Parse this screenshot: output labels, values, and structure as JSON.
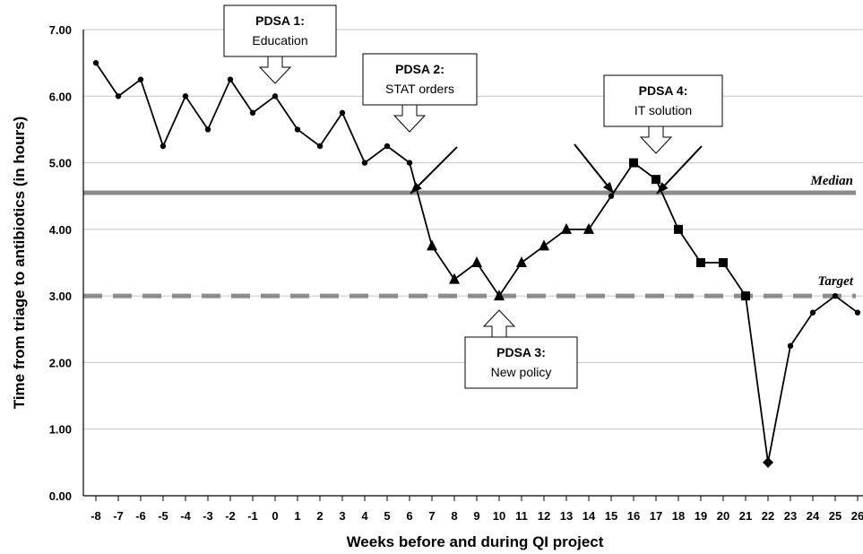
{
  "chart_data": {
    "type": "line",
    "xlabel": "Weeks before and during QI project",
    "ylabel": "Time from triage to antibiotics (in hours)",
    "ylim": [
      0,
      7
    ],
    "y_ticks": [
      "0.00",
      "1.00",
      "2.00",
      "3.00",
      "4.00",
      "5.00",
      "6.00",
      "7.00"
    ],
    "grid": "horizontal",
    "categories": [
      "-8",
      "-7",
      "-6",
      "-5",
      "-4",
      "-3",
      "-2",
      "-1",
      "0",
      "1",
      "2",
      "3",
      "4",
      "5",
      "6",
      "7",
      "8",
      "9",
      "10",
      "11",
      "12",
      "13",
      "14",
      "15",
      "16",
      "17",
      "18",
      "19",
      "20",
      "21",
      "22",
      "23",
      "24",
      "25",
      "26"
    ],
    "values": [
      6.5,
      6.0,
      6.25,
      5.25,
      6.0,
      5.5,
      6.25,
      5.75,
      6.0,
      5.5,
      5.25,
      5.75,
      5.0,
      5.25,
      5.0,
      3.75,
      3.25,
      3.5,
      3.0,
      3.5,
      3.75,
      4.0,
      4.0,
      4.5,
      5.0,
      4.75,
      4.0,
      3.5,
      3.5,
      3.0,
      0.5,
      2.25,
      2.75,
      3.0,
      2.75
    ],
    "markers": [
      "circle",
      "circle",
      "circle",
      "circle",
      "circle",
      "circle",
      "circle",
      "circle",
      "circle",
      "circle",
      "circle",
      "circle",
      "circle",
      "circle",
      "circle",
      "triangle",
      "triangle",
      "triangle",
      "triangle",
      "triangle",
      "triangle",
      "triangle",
      "triangle",
      "circle",
      "square",
      "square",
      "square",
      "square",
      "square",
      "square",
      "diamond",
      "circle",
      "circle",
      "circle",
      "circle"
    ],
    "reference_lines": [
      {
        "label": "Median",
        "value": 4.55,
        "style": "solid",
        "color": "#8c8c8c"
      },
      {
        "label": "Target",
        "value": 3.0,
        "style": "dashed",
        "color": "#8c8c8c"
      }
    ],
    "annotations": [
      {
        "title": "PDSA 1:",
        "text": "Education",
        "points_to_week": "0",
        "pointer": "down"
      },
      {
        "title": "PDSA 2:",
        "text": "STAT orders",
        "points_to_week": "6",
        "pointer": "down"
      },
      {
        "title": "PDSA 3:",
        "text": "New policy",
        "points_to_week": "10",
        "pointer": "up"
      },
      {
        "title": "PDSA 4:",
        "text": "IT solution",
        "points_to_week": "17",
        "pointer": "down"
      }
    ],
    "arrows_to_median_crossings_at_weeks": [
      "6",
      "15",
      "17"
    ]
  }
}
